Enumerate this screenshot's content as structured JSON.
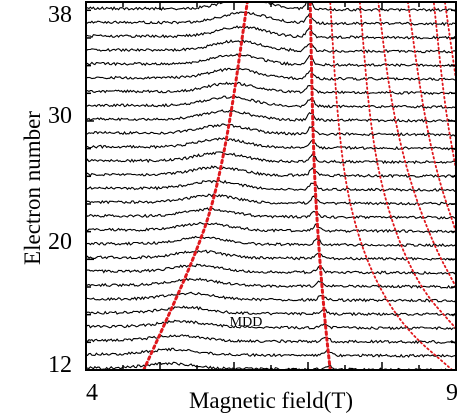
{
  "chart_data": {
    "type": "line",
    "title": "",
    "xlabel": "Magnetic field(T)",
    "ylabel": "Electron number",
    "xlim": [
      4,
      9
    ],
    "ylim": [
      12,
      38.6
    ],
    "x_ticks": [
      "4",
      "9"
    ],
    "y_ticks": [
      "12",
      "20",
      "30",
      "38"
    ],
    "grid": false,
    "legend": "none",
    "annotation": {
      "text": "MDD",
      "x": 6.7,
      "y": 14.6
    },
    "trace_color": "#000000",
    "guide_color": "#e0171c",
    "traces": {
      "electron_numbers": [
        12,
        13,
        14,
        15,
        16,
        17,
        18,
        19,
        20,
        21,
        22,
        23,
        24,
        25,
        26,
        27,
        28,
        29,
        30,
        31,
        32,
        33,
        34,
        35,
        36,
        37,
        38
      ],
      "peak_center_1": [
        {
          "n": 12,
          "x": 5.12
        },
        {
          "n": 18,
          "x": 5.46
        },
        {
          "n": 24,
          "x": 5.7
        },
        {
          "n": 30,
          "x": 5.9
        },
        {
          "n": 38,
          "x": 6.16
        }
      ],
      "peak_center_2": [
        {
          "n": 12,
          "x": 7.28
        },
        {
          "n": 18,
          "x": 7.17
        },
        {
          "n": 24,
          "x": 7.08
        },
        {
          "n": 30,
          "x": 7.04
        },
        {
          "n": 38,
          "x": 7.01
        }
      ]
    },
    "guide_lines": [
      {
        "name": "boundary-1",
        "style": "dotted",
        "points": [
          [
            4.78,
            12
          ],
          [
            5.12,
            16
          ],
          [
            5.45,
            20
          ],
          [
            5.72,
            24
          ],
          [
            5.95,
            30
          ],
          [
            6.18,
            38.6
          ]
        ]
      },
      {
        "name": "boundary-2",
        "style": "dotted",
        "points": [
          [
            7.3,
            12
          ],
          [
            7.22,
            16
          ],
          [
            7.13,
            22
          ],
          [
            7.07,
            28
          ],
          [
            7.03,
            38.6
          ]
        ]
      },
      {
        "name": "boundary-3",
        "style": "dotted",
        "points": [
          [
            8.95,
            12
          ],
          [
            8.3,
            15
          ],
          [
            7.85,
            19
          ],
          [
            7.55,
            24
          ],
          [
            7.4,
            30
          ],
          [
            7.3,
            38.6
          ]
        ]
      },
      {
        "name": "boundary-4",
        "style": "dotted",
        "points": [
          [
            9,
            15
          ],
          [
            8.5,
            18
          ],
          [
            8.1,
            23
          ],
          [
            7.85,
            29
          ],
          [
            7.7,
            38.6
          ]
        ]
      },
      {
        "name": "boundary-5",
        "style": "dotted",
        "points": [
          [
            9,
            18
          ],
          [
            8.7,
            21
          ],
          [
            8.35,
            26
          ],
          [
            8.1,
            32
          ],
          [
            7.95,
            38.6
          ]
        ]
      },
      {
        "name": "boundary-6",
        "style": "dotted",
        "points": [
          [
            9,
            22
          ],
          [
            8.75,
            26
          ],
          [
            8.55,
            31
          ],
          [
            8.35,
            38.6
          ]
        ]
      },
      {
        "name": "boundary-7",
        "style": "dotted",
        "points": [
          [
            9,
            26.5
          ],
          [
            8.85,
            31
          ],
          [
            8.7,
            38.6
          ]
        ]
      },
      {
        "name": "boundary-8",
        "style": "dotted",
        "points": [
          [
            9,
            33
          ],
          [
            8.85,
            38.6
          ]
        ]
      }
    ]
  }
}
